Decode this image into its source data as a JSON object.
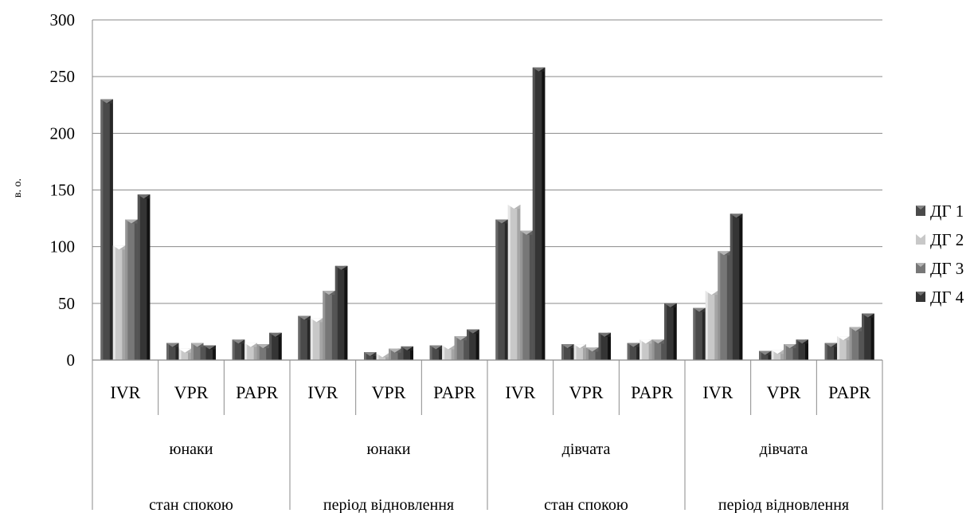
{
  "chart_data": {
    "type": "bar",
    "ylabel": "в. о.",
    "ylim": [
      0,
      300
    ],
    "yticks": [
      "0",
      "50",
      "100",
      "150",
      "200",
      "250",
      "300"
    ],
    "grid": true,
    "legend_position": "right",
    "categories": [
      "IVR",
      "VPR",
      "PAPR",
      "IVR",
      "VPR",
      "PAPR",
      "IVR",
      "VPR",
      "PAPR",
      "IVR",
      "VPR",
      "PAPR"
    ],
    "groups_level1": [
      "юнаки",
      "юнаки",
      "дівчата",
      "дівчата"
    ],
    "groups_level2": [
      "стан спокою",
      "період відновлення",
      "стан спокою",
      "період відновлення"
    ],
    "series": [
      {
        "name": "ДГ 1",
        "color": "#4a4a4a",
        "values": [
          230,
          15,
          18,
          39,
          7,
          13,
          124,
          14,
          15,
          46,
          8,
          15
        ]
      },
      {
        "name": "ДГ 2",
        "color": "#c8c8c8",
        "values": [
          101,
          10,
          15,
          37,
          6,
          13,
          137,
          14,
          18,
          61,
          9,
          21
        ]
      },
      {
        "name": "ДГ 3",
        "color": "#777777",
        "values": [
          124,
          15,
          14,
          61,
          10,
          21,
          114,
          11,
          18,
          96,
          14,
          29
        ]
      },
      {
        "name": "ДГ 4",
        "color": "#353535",
        "values": [
          146,
          13,
          24,
          83,
          12,
          27,
          258,
          24,
          50,
          129,
          18,
          41
        ]
      }
    ]
  }
}
